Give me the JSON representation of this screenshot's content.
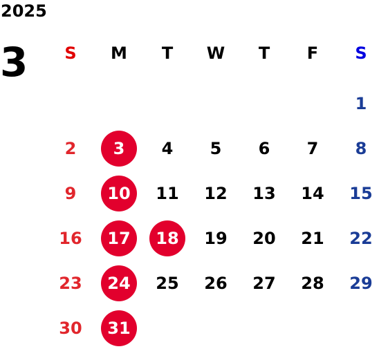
{
  "year": "2025",
  "month": "3",
  "weekdays": [
    "S",
    "M",
    "T",
    "W",
    "T",
    "F",
    "S"
  ],
  "colors": {
    "sunday": "#e1262c",
    "saturday": "#1a3c96",
    "highlight": "#e2002d"
  },
  "weeks": [
    [
      "",
      "",
      "",
      "",
      "",
      "",
      "1"
    ],
    [
      "2",
      "3",
      "4",
      "5",
      "6",
      "7",
      "8"
    ],
    [
      "9",
      "10",
      "11",
      "12",
      "13",
      "14",
      "15"
    ],
    [
      "16",
      "17",
      "18",
      "19",
      "20",
      "21",
      "22"
    ],
    [
      "23",
      "24",
      "25",
      "26",
      "27",
      "28",
      "29"
    ],
    [
      "30",
      "31",
      "",
      "",
      "",
      "",
      ""
    ]
  ],
  "highlighted_days": [
    "3",
    "10",
    "17",
    "18",
    "24",
    "31"
  ]
}
